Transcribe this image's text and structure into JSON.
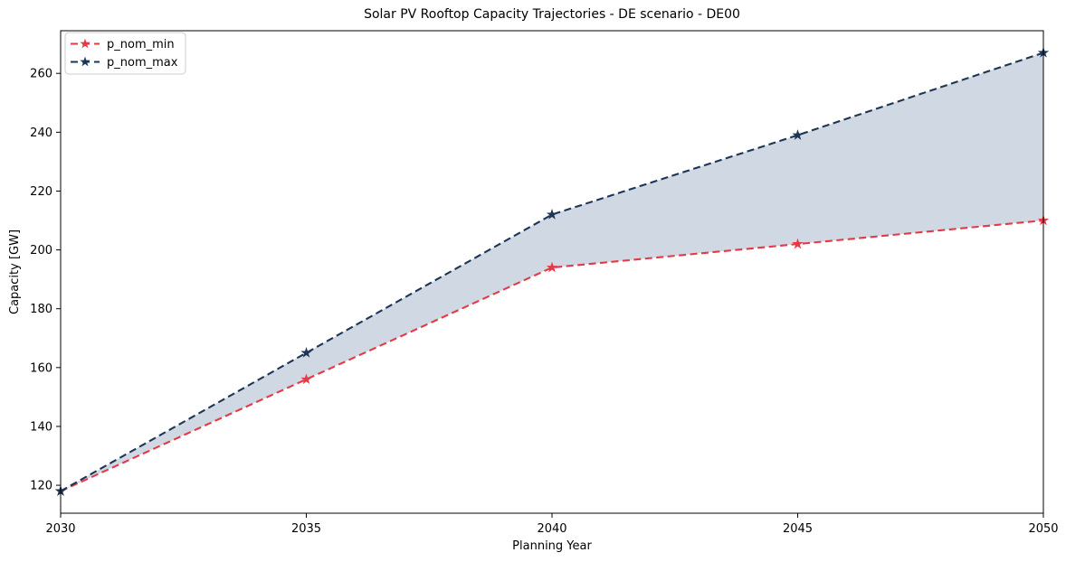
{
  "chart_data": {
    "type": "line",
    "title": "Solar PV Rooftop Capacity Trajectories - DE scenario - DE00",
    "xlabel": "Planning Year",
    "ylabel": "Capacity [GW]",
    "x": [
      2030,
      2035,
      2040,
      2045,
      2050
    ],
    "series": [
      {
        "name": "p_nom_min",
        "values": [
          118,
          156,
          194,
          202,
          210
        ],
        "color": "#E63946",
        "linestyle": "dashed",
        "marker": "star"
      },
      {
        "name": "p_nom_max",
        "values": [
          118,
          165,
          212,
          239,
          267
        ],
        "color": "#1D3557",
        "linestyle": "dashed",
        "marker": "star"
      }
    ],
    "fill_between": {
      "lower": "p_nom_min",
      "upper": "p_nom_max",
      "color": "#d0d9e3",
      "opacity": 1
    },
    "xlim": [
      2030,
      2050
    ],
    "ylim": [
      110.5,
      274.5
    ],
    "xticks": [
      2030,
      2035,
      2040,
      2045,
      2050
    ],
    "yticks": [
      120,
      140,
      160,
      180,
      200,
      220,
      240,
      260
    ],
    "grid": false,
    "legend_position": "upper left",
    "background_color": "#ffffff",
    "text_color": "#000000"
  }
}
